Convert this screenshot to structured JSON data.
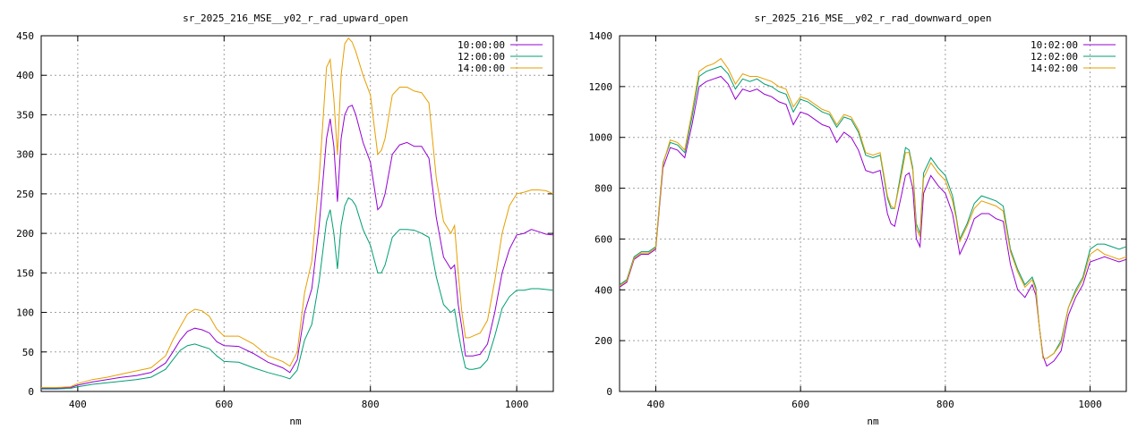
{
  "chart_data": [
    {
      "type": "line",
      "title": "sr_2025_216_MSE__y02_r_rad_upward_open",
      "xlabel": "nm",
      "ylabel": "",
      "xlim": [
        350,
        1050
      ],
      "ylim": [
        0,
        450
      ],
      "xticks": [
        400,
        600,
        800,
        1000
      ],
      "yticks": [
        0,
        50,
        100,
        150,
        200,
        250,
        300,
        350,
        400,
        450
      ],
      "grid": true,
      "legend_position": "top-right",
      "x": [
        350,
        370,
        390,
        400,
        420,
        440,
        460,
        480,
        500,
        520,
        530,
        540,
        550,
        560,
        570,
        580,
        590,
        600,
        620,
        640,
        660,
        680,
        690,
        700,
        710,
        720,
        730,
        740,
        745,
        750,
        755,
        760,
        765,
        770,
        775,
        780,
        790,
        800,
        810,
        815,
        820,
        830,
        840,
        850,
        860,
        870,
        880,
        890,
        900,
        910,
        915,
        920,
        925,
        930,
        935,
        940,
        950,
        960,
        970,
        980,
        990,
        1000,
        1010,
        1020,
        1030,
        1040,
        1050
      ],
      "series": [
        {
          "name": "10:00:00",
          "color": "#9400d3",
          "values": [
            4,
            4,
            5,
            8,
            12,
            15,
            18,
            20,
            24,
            36,
            50,
            65,
            76,
            80,
            78,
            74,
            63,
            58,
            57,
            48,
            37,
            30,
            24,
            40,
            100,
            130,
            210,
            320,
            345,
            310,
            240,
            320,
            350,
            360,
            362,
            350,
            315,
            290,
            230,
            235,
            250,
            300,
            312,
            315,
            310,
            310,
            295,
            220,
            170,
            155,
            160,
            110,
            80,
            45,
            45,
            45,
            47,
            60,
            100,
            150,
            180,
            198,
            200,
            205,
            202,
            199,
            198
          ]
        },
        {
          "name": "12:00:00",
          "color": "#009e73",
          "values": [
            3,
            3,
            4,
            6,
            9,
            11,
            13,
            15,
            18,
            28,
            40,
            52,
            58,
            60,
            57,
            54,
            45,
            38,
            37,
            30,
            24,
            19,
            16,
            27,
            65,
            85,
            140,
            215,
            230,
            200,
            155,
            210,
            235,
            245,
            242,
            235,
            205,
            185,
            150,
            150,
            160,
            195,
            205,
            205,
            204,
            200,
            195,
            145,
            110,
            100,
            104,
            75,
            50,
            30,
            28,
            28,
            30,
            40,
            70,
            105,
            120,
            128,
            128,
            130,
            130,
            129,
            128
          ]
        },
        {
          "name": "14:00:00",
          "color": "#e69f00",
          "values": [
            5,
            5,
            6,
            10,
            15,
            18,
            22,
            26,
            30,
            45,
            65,
            82,
            98,
            104,
            102,
            95,
            79,
            70,
            70,
            60,
            45,
            38,
            32,
            50,
            125,
            165,
            270,
            410,
            420,
            370,
            300,
            400,
            440,
            447,
            442,
            430,
            400,
            375,
            300,
            305,
            320,
            375,
            385,
            385,
            380,
            378,
            365,
            270,
            215,
            200,
            210,
            150,
            100,
            68,
            68,
            70,
            74,
            90,
            140,
            200,
            235,
            250,
            252,
            255,
            255,
            254,
            250
          ]
        }
      ]
    },
    {
      "type": "line",
      "title": "sr_2025_216_MSE__y02_r_rad_downward_open",
      "xlabel": "nm",
      "ylabel": "",
      "xlim": [
        350,
        1050
      ],
      "ylim": [
        0,
        1400
      ],
      "xticks": [
        400,
        600,
        800,
        1000
      ],
      "yticks": [
        0,
        200,
        400,
        600,
        800,
        1000,
        1200,
        1400
      ],
      "grid": true,
      "legend_position": "top-right",
      "x": [
        350,
        360,
        370,
        380,
        390,
        400,
        410,
        420,
        430,
        440,
        450,
        460,
        470,
        480,
        490,
        500,
        510,
        520,
        530,
        540,
        550,
        560,
        570,
        580,
        590,
        600,
        610,
        620,
        630,
        640,
        650,
        660,
        670,
        680,
        690,
        700,
        710,
        720,
        725,
        730,
        740,
        745,
        750,
        755,
        760,
        765,
        770,
        780,
        790,
        800,
        810,
        815,
        820,
        830,
        840,
        850,
        860,
        870,
        880,
        890,
        900,
        910,
        920,
        925,
        930,
        935,
        940,
        950,
        960,
        970,
        980,
        990,
        1000,
        1010,
        1020,
        1030,
        1040,
        1050
      ],
      "series": [
        {
          "name": "10:02:00",
          "color": "#9400d3",
          "values": [
            410,
            430,
            520,
            540,
            540,
            560,
            880,
            960,
            950,
            920,
            1050,
            1200,
            1220,
            1230,
            1240,
            1210,
            1150,
            1190,
            1180,
            1190,
            1170,
            1160,
            1140,
            1130,
            1050,
            1100,
            1090,
            1070,
            1050,
            1040,
            980,
            1020,
            1000,
            950,
            870,
            860,
            870,
            700,
            660,
            650,
            780,
            850,
            860,
            800,
            600,
            570,
            780,
            850,
            810,
            780,
            700,
            620,
            540,
            600,
            680,
            700,
            700,
            680,
            670,
            500,
            400,
            370,
            420,
            380,
            250,
            140,
            100,
            120,
            160,
            300,
            370,
            420,
            510,
            520,
            530,
            520,
            510,
            520
          ]
        },
        {
          "name": "12:02:00",
          "color": "#009e73",
          "values": [
            420,
            440,
            530,
            550,
            550,
            570,
            900,
            980,
            970,
            940,
            1080,
            1240,
            1260,
            1270,
            1280,
            1250,
            1190,
            1230,
            1220,
            1230,
            1210,
            1200,
            1180,
            1170,
            1100,
            1150,
            1140,
            1120,
            1100,
            1090,
            1040,
            1080,
            1070,
            1020,
            930,
            920,
            930,
            760,
            720,
            720,
            880,
            960,
            950,
            880,
            660,
            620,
            860,
            920,
            880,
            850,
            770,
            690,
            600,
            660,
            740,
            770,
            760,
            750,
            730,
            560,
            480,
            420,
            450,
            410,
            250,
            130,
            130,
            150,
            200,
            330,
            400,
            450,
            560,
            580,
            580,
            570,
            560,
            570
          ]
        },
        {
          "name": "14:02:00",
          "color": "#e69f00",
          "values": [
            415,
            435,
            525,
            545,
            545,
            565,
            895,
            990,
            980,
            950,
            1100,
            1260,
            1280,
            1290,
            1310,
            1270,
            1210,
            1250,
            1240,
            1240,
            1230,
            1220,
            1200,
            1190,
            1120,
            1160,
            1150,
            1130,
            1110,
            1100,
            1050,
            1090,
            1080,
            1030,
            940,
            930,
            940,
            770,
            730,
            720,
            860,
            940,
            940,
            870,
            640,
            610,
            840,
            900,
            860,
            830,
            750,
            680,
            590,
            650,
            720,
            750,
            740,
            730,
            710,
            550,
            470,
            410,
            440,
            400,
            250,
            130,
            130,
            150,
            190,
            330,
            390,
            440,
            540,
            560,
            540,
            530,
            520,
            530
          ]
        }
      ]
    }
  ]
}
